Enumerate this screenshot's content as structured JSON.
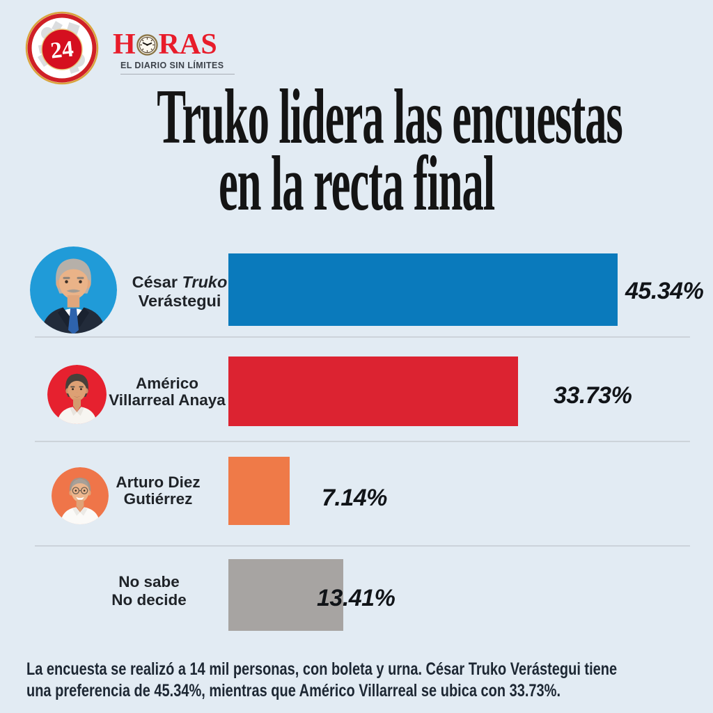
{
  "brand": {
    "number": "24",
    "name_pre": "H",
    "name_post": "RAS",
    "tagline": "EL DIARIO SIN LÍMITES"
  },
  "title": {
    "line1": "Truko lidera las encuestas",
    "line2": "en la recta final"
  },
  "chart_data": {
    "type": "bar",
    "orientation": "horizontal",
    "title": "Truko lidera las encuestas en la recta final",
    "categories": [
      "César Truko Verástegui",
      "Américo Villarreal Anaya",
      "Arturo Diez Gutiérrez",
      "No sabe No decide"
    ],
    "values": [
      45.34,
      33.73,
      7.14,
      13.41
    ],
    "value_labels": [
      "45.34%",
      "33.73%",
      "7.14%",
      "13.41%"
    ],
    "unit": "%",
    "colors": [
      "#0a7abc",
      "#dc2331",
      "#ef7a48",
      "#a7a4a2"
    ],
    "xlim": [
      0,
      50
    ],
    "legend": "none",
    "grid": false
  },
  "rows": [
    {
      "l1a": "César ",
      "l1b": "Truko",
      "l2": "Verástegui",
      "pct": "45.34%"
    },
    {
      "l1a": "Américo",
      "l1b": "",
      "l2": "Villarreal Anaya",
      "pct": "33.73%"
    },
    {
      "l1a": "Arturo Diez",
      "l1b": "",
      "l2": "Gutiérrez",
      "pct": "7.14%"
    },
    {
      "l1a": "No sabe",
      "l1b": "",
      "l2": "No decide",
      "pct": "13.41%"
    }
  ],
  "footer": {
    "line1": "La encuesta se realizó a 14 mil personas, con boleta y urna. César Truko Verástegui tiene",
    "line2": "una preferencia de 45.34%, mientras que Américo Villarreal se ubica con 33.73%."
  }
}
